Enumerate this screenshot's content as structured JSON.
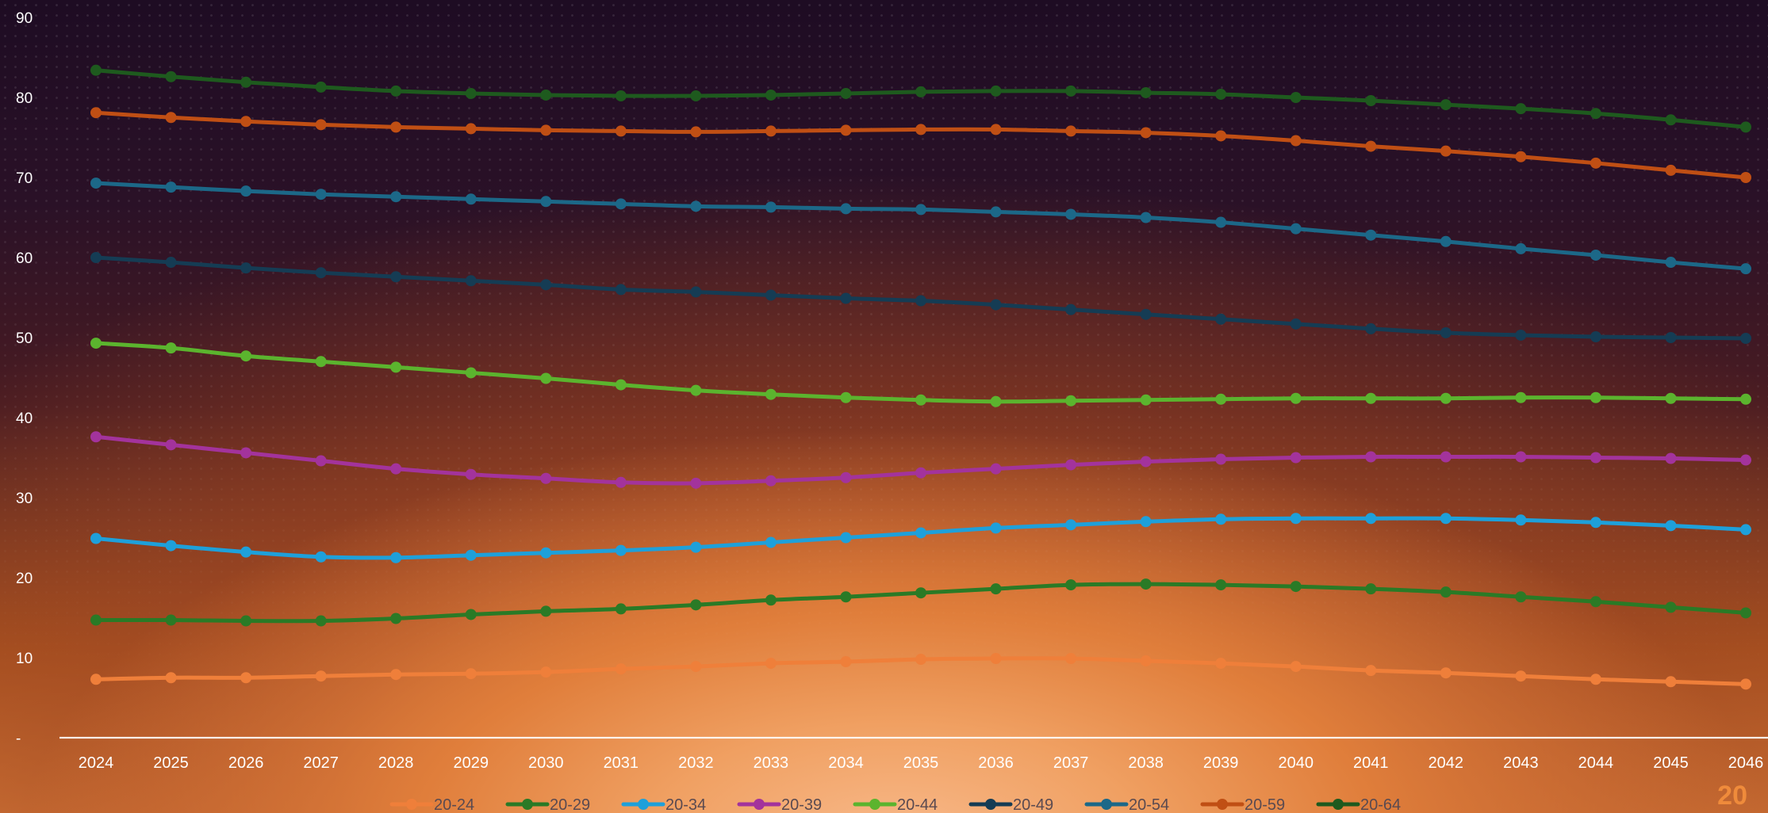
{
  "chart_data": {
    "type": "line",
    "x": [
      2024,
      2025,
      2026,
      2027,
      2028,
      2029,
      2030,
      2031,
      2032,
      2033,
      2034,
      2035,
      2036,
      2037,
      2038,
      2039,
      2040,
      2041,
      2042,
      2043,
      2044,
      2045,
      2046
    ],
    "y_ticks": [
      "-",
      "10",
      "20",
      "30",
      "40",
      "50",
      "60",
      "70",
      "80",
      "90"
    ],
    "ylim": [
      0,
      90
    ],
    "grid": false,
    "legend_position": "bottom",
    "series": [
      {
        "name": "20-24",
        "color": "#ef7f3a",
        "values": [
          7.3,
          7.5,
          7.5,
          7.7,
          7.9,
          8.0,
          8.2,
          8.6,
          8.9,
          9.3,
          9.5,
          9.8,
          9.9,
          9.9,
          9.6,
          9.3,
          8.9,
          8.4,
          8.1,
          7.7,
          7.3,
          7.0,
          6.7
        ]
      },
      {
        "name": "20-29",
        "color": "#2a7a26",
        "values": [
          14.7,
          14.7,
          14.6,
          14.6,
          14.9,
          15.4,
          15.8,
          16.1,
          16.6,
          17.2,
          17.6,
          18.1,
          18.6,
          19.1,
          19.2,
          19.1,
          18.9,
          18.6,
          18.2,
          17.6,
          17.0,
          16.3,
          15.6
        ]
      },
      {
        "name": "20-34",
        "color": "#1ea0da",
        "values": [
          24.9,
          24.0,
          23.2,
          22.6,
          22.5,
          22.8,
          23.1,
          23.4,
          23.8,
          24.4,
          25.0,
          25.6,
          26.2,
          26.6,
          27.0,
          27.3,
          27.4,
          27.4,
          27.4,
          27.2,
          26.9,
          26.5,
          26.0
        ]
      },
      {
        "name": "20-39",
        "color": "#a3339c",
        "values": [
          37.6,
          36.6,
          35.6,
          34.6,
          33.6,
          32.9,
          32.4,
          31.9,
          31.8,
          32.1,
          32.5,
          33.1,
          33.6,
          34.1,
          34.5,
          34.8,
          35.0,
          35.1,
          35.1,
          35.1,
          35.0,
          34.9,
          34.7
        ]
      },
      {
        "name": "20-44",
        "color": "#5bb42e",
        "values": [
          49.3,
          48.7,
          47.7,
          47.0,
          46.3,
          45.6,
          44.9,
          44.1,
          43.4,
          42.9,
          42.5,
          42.2,
          42.0,
          42.1,
          42.2,
          42.3,
          42.4,
          42.4,
          42.4,
          42.5,
          42.5,
          42.4,
          42.3
        ]
      },
      {
        "name": "20-49",
        "color": "#153c54",
        "values": [
          60.0,
          59.4,
          58.7,
          58.1,
          57.6,
          57.1,
          56.6,
          56.0,
          55.7,
          55.3,
          54.9,
          54.6,
          54.1,
          53.5,
          52.9,
          52.3,
          51.7,
          51.1,
          50.6,
          50.3,
          50.1,
          50.0,
          49.9
        ]
      },
      {
        "name": "20-54",
        "color": "#1c6888",
        "values": [
          69.3,
          68.8,
          68.3,
          67.9,
          67.6,
          67.3,
          67.0,
          66.7,
          66.4,
          66.3,
          66.1,
          66.0,
          65.7,
          65.4,
          65.0,
          64.4,
          63.6,
          62.8,
          62.0,
          61.1,
          60.3,
          59.4,
          58.6
        ]
      },
      {
        "name": "20-59",
        "color": "#c04f14",
        "values": [
          78.1,
          77.5,
          77.0,
          76.6,
          76.3,
          76.1,
          75.9,
          75.8,
          75.7,
          75.8,
          75.9,
          76.0,
          76.0,
          75.8,
          75.6,
          75.2,
          74.6,
          73.9,
          73.3,
          72.6,
          71.8,
          70.9,
          70.0
        ]
      },
      {
        "name": "20-64",
        "color": "#1e5a1e",
        "values": [
          83.4,
          82.6,
          81.9,
          81.3,
          80.8,
          80.5,
          80.3,
          80.2,
          80.2,
          80.3,
          80.5,
          80.7,
          80.8,
          80.8,
          80.6,
          80.4,
          80.0,
          79.6,
          79.1,
          78.6,
          78.0,
          77.2,
          76.3
        ]
      }
    ]
  },
  "brand": {
    "text": "20"
  }
}
